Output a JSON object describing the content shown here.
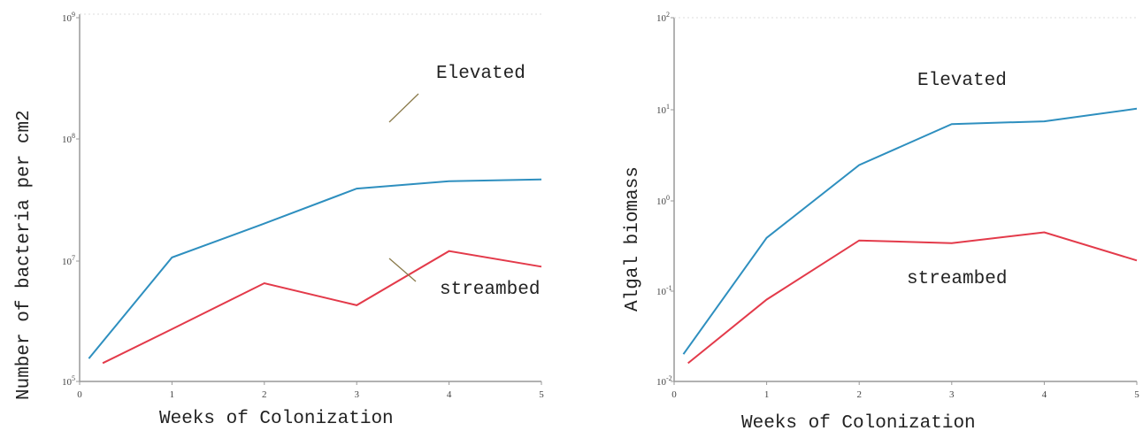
{
  "colors": {
    "elevated": "#2e8fbf",
    "streambed": "#e33a4a",
    "axis": "#999999",
    "leader": "#8a7a4a"
  },
  "chart_data": [
    {
      "type": "line",
      "xlabel": "Weeks of Colonization",
      "ylabel": "Number of bacteria per cm2",
      "x_ticks": [
        "0",
        "1",
        "2",
        "3",
        "4",
        "5"
      ],
      "y_ticks": [
        {
          "base": "10",
          "exp": "5"
        },
        {
          "base": "10",
          "exp": "7"
        },
        {
          "base": "10",
          "exp": "8"
        },
        {
          "base": "10",
          "exp": "9"
        }
      ],
      "yscale": "log",
      "xlim": [
        0,
        5
      ],
      "ylim_exp": [
        5,
        9
      ],
      "series": [
        {
          "name": "Elevated",
          "points": [
            [
              0.1,
              5.25
            ],
            [
              1,
              6.35
            ],
            [
              2,
              6.72
            ],
            [
              3,
              7.1
            ],
            [
              4,
              7.18
            ],
            [
              5,
              7.2
            ]
          ]
        },
        {
          "name": "streambed",
          "points": [
            [
              0.25,
              5.2
            ],
            [
              1,
              5.57
            ],
            [
              2,
              6.07
            ],
            [
              3,
              5.83
            ],
            [
              4,
              6.42
            ],
            [
              5,
              6.25
            ]
          ]
        }
      ]
    },
    {
      "type": "line",
      "xlabel": "Weeks of Colonization",
      "ylabel": "Algal biomass",
      "x_ticks": [
        "0",
        "1",
        "2",
        "3",
        "4",
        "5"
      ],
      "y_ticks": [
        {
          "base": "10",
          "exp": "-2"
        },
        {
          "base": "10",
          "exp": "-1"
        },
        {
          "base": "10",
          "exp": "0"
        },
        {
          "base": "10",
          "exp": "1"
        },
        {
          "base": "10",
          "exp": "2"
        }
      ],
      "yscale": "log",
      "xlim": [
        0,
        5
      ],
      "ylim_exp": [
        -2,
        2
      ],
      "series": [
        {
          "name": "Elevated",
          "points": [
            [
              0.1,
              -1.7
            ],
            [
              1,
              -0.42
            ],
            [
              2,
              0.38
            ],
            [
              3,
              0.83
            ],
            [
              4,
              0.86
            ],
            [
              5,
              1.0
            ]
          ]
        },
        {
          "name": "streambed",
          "points": [
            [
              0.15,
              -1.8
            ],
            [
              1,
              -1.1
            ],
            [
              2,
              -0.45
            ],
            [
              3,
              -0.48
            ],
            [
              4,
              -0.36
            ],
            [
              5,
              -0.67
            ]
          ]
        }
      ]
    }
  ]
}
